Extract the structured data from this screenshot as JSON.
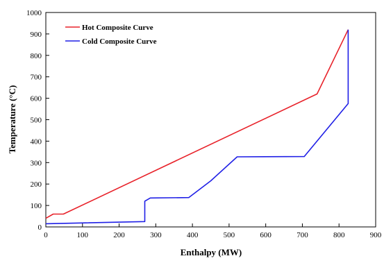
{
  "chart_data": {
    "type": "line",
    "title": "",
    "xlabel": "Enthalpy (MW)",
    "ylabel": "Temperature (°C)",
    "xlim": [
      0,
      900
    ],
    "ylim": [
      0,
      1000
    ],
    "xticks": [
      0,
      100,
      200,
      300,
      400,
      500,
      600,
      700,
      800,
      900
    ],
    "yticks": [
      0,
      100,
      200,
      300,
      400,
      500,
      600,
      700,
      800,
      900,
      1000
    ],
    "grid": false,
    "legend_position": "top-left",
    "series": [
      {
        "name": "Hot Composite Curve",
        "color": "#e8222a",
        "points": [
          [
            0,
            40
          ],
          [
            20,
            60
          ],
          [
            48,
            60
          ],
          [
            740,
            620
          ],
          [
            825,
            920
          ]
        ]
      },
      {
        "name": "Cold Composite Curve",
        "color": "#1f1fe6",
        "points": [
          [
            0,
            15
          ],
          [
            270,
            25
          ],
          [
            270,
            120
          ],
          [
            285,
            135
          ],
          [
            390,
            137
          ],
          [
            450,
            215
          ],
          [
            522,
            327
          ],
          [
            705,
            328
          ],
          [
            825,
            575
          ],
          [
            825,
            920
          ]
        ]
      }
    ]
  }
}
